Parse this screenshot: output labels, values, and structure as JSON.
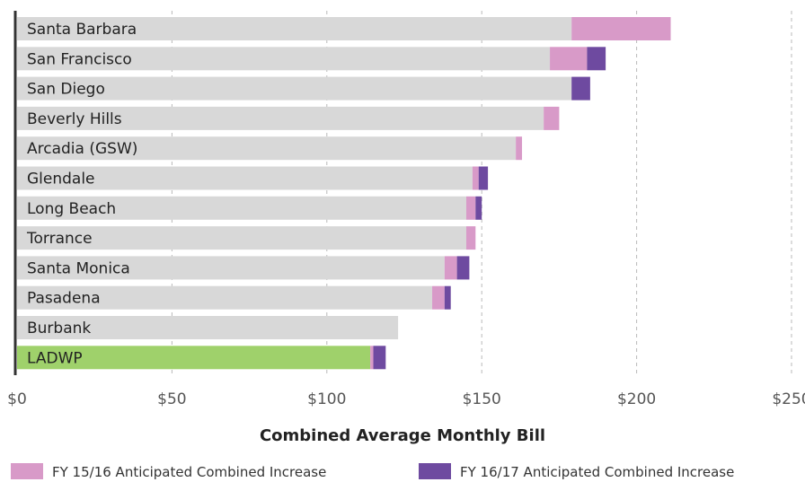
{
  "chart_data": {
    "type": "bar",
    "orientation": "horizontal",
    "stacked": true,
    "xlabel": "Combined Average Monthly Bill",
    "xlim": [
      0,
      250
    ],
    "xticks": [
      0,
      50,
      100,
      150,
      200,
      250
    ],
    "xtick_labels": [
      "$0",
      "$50",
      "$100",
      "$150",
      "$200",
      "$250"
    ],
    "grid": "vertical dashed",
    "legend_position": "bottom",
    "categories": [
      "Santa Barbara",
      "San Francisco",
      "San Diego",
      "Beverly Hills",
      "Arcadia (GSW)",
      "Glendale",
      "Long Beach",
      "Torrance",
      "Santa Monica",
      "Pasadena",
      "Burbank",
      "LADWP"
    ],
    "base_values": [
      179,
      172,
      179,
      170,
      161,
      147,
      145,
      145,
      138,
      134,
      123,
      114
    ],
    "base_colors": [
      "#d8d8d8",
      "#d8d8d8",
      "#d8d8d8",
      "#d8d8d8",
      "#d8d8d8",
      "#d8d8d8",
      "#d8d8d8",
      "#d8d8d8",
      "#d8d8d8",
      "#d8d8d8",
      "#d8d8d8",
      "#9fd16b"
    ],
    "series": [
      {
        "name": "FY 15/16 Anticipated Combined Increase",
        "color": "#d89ac8",
        "values": [
          32,
          12,
          0,
          5,
          2,
          2,
          3,
          3,
          4,
          4,
          0,
          1
        ]
      },
      {
        "name": "FY 16/17 Anticipated Combined Increase",
        "color": "#6e4aa0",
        "values": [
          0,
          6,
          6,
          0,
          0,
          3,
          2,
          0,
          4,
          2,
          0,
          4
        ]
      }
    ]
  }
}
